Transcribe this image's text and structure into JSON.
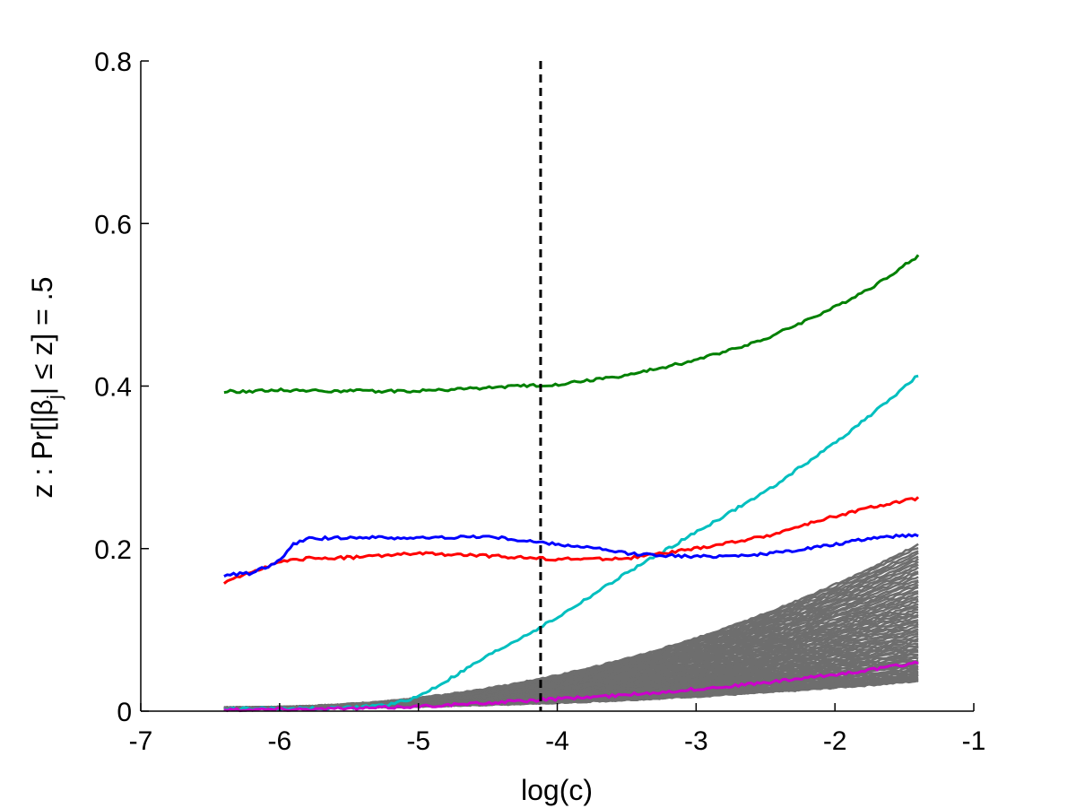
{
  "chart_data": {
    "type": "line",
    "xlabel": "log(c)",
    "ylabel_text": "z : Pr[|β",
    "ylabel_sub": "j",
    "ylabel_rest": "| ≤ z] = .5",
    "xlim": [
      -7,
      -1
    ],
    "ylim": [
      0,
      0.8
    ],
    "xticks": [
      "-7",
      "-6",
      "-5",
      "-4",
      "-3",
      "-2",
      "-1"
    ],
    "yticks": [
      "0",
      "0.2",
      "0.4",
      "0.6",
      "0.8"
    ],
    "grid": false,
    "legend": "none",
    "vline": {
      "x": -4.12,
      "style": "dashed",
      "color": "#000000"
    },
    "series": [
      {
        "color": "#008000",
        "x": [
          -6.4,
          -6.0,
          -5.5,
          -5.0,
          -4.5,
          -4.0,
          -3.5,
          -3.0,
          -2.5,
          -2.0,
          -1.7,
          -1.4
        ],
        "values": [
          0.393,
          0.395,
          0.394,
          0.394,
          0.398,
          0.402,
          0.413,
          0.432,
          0.458,
          0.497,
          0.525,
          0.56
        ]
      },
      {
        "color": "#00bfbf",
        "x": [
          -6.4,
          -6.0,
          -5.5,
          -5.2,
          -5.0,
          -4.8,
          -4.5,
          -4.0,
          -3.5,
          -3.0,
          -2.5,
          -2.0,
          -1.7,
          -1.4
        ],
        "values": [
          0.003,
          0.003,
          0.004,
          0.008,
          0.018,
          0.037,
          0.068,
          0.115,
          0.17,
          0.22,
          0.27,
          0.33,
          0.37,
          0.413
        ]
      },
      {
        "color": "#ff0000",
        "x": [
          -6.4,
          -6.2,
          -6.0,
          -5.8,
          -5.5,
          -5.0,
          -4.5,
          -4.0,
          -3.5,
          -3.0,
          -2.5,
          -2.0,
          -1.7,
          -1.4
        ],
        "values": [
          0.157,
          0.172,
          0.183,
          0.188,
          0.189,
          0.194,
          0.191,
          0.187,
          0.188,
          0.2,
          0.215,
          0.24,
          0.252,
          0.262
        ]
      },
      {
        "color": "#0000ff",
        "x": [
          -6.4,
          -6.2,
          -6.0,
          -5.9,
          -5.8,
          -5.5,
          -5.0,
          -4.5,
          -4.0,
          -3.8,
          -3.5,
          -3.0,
          -2.5,
          -2.0,
          -1.7,
          -1.4
        ],
        "values": [
          0.167,
          0.17,
          0.185,
          0.205,
          0.212,
          0.214,
          0.213,
          0.215,
          0.205,
          0.202,
          0.194,
          0.19,
          0.193,
          0.205,
          0.214,
          0.217
        ]
      },
      {
        "color": "#cc00cc",
        "x": [
          -6.4,
          -5.5,
          -5.0,
          -4.5,
          -4.0,
          -3.5,
          -3.0,
          -2.5,
          -2.0,
          -1.7,
          -1.4
        ],
        "values": [
          0.002,
          0.003,
          0.006,
          0.01,
          0.015,
          0.02,
          0.027,
          0.035,
          0.045,
          0.052,
          0.06
        ]
      }
    ],
    "gray_band": {
      "color": "#6e6e6e",
      "count": 60,
      "x_start": -6.4,
      "x_end": -1.4,
      "end_min": 0.037,
      "end_max": 0.205
    }
  }
}
